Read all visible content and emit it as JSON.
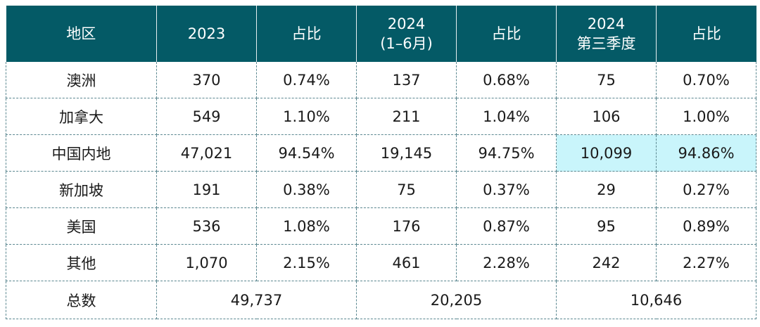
{
  "table": {
    "headers": {
      "region": "地区",
      "y2023": "2023",
      "share1": "占比",
      "h1_line1": "2024",
      "h1_line2": "(1–6月)",
      "share2": "占比",
      "q3_line1": "2024",
      "q3_line2": "第三季度",
      "share3": "占比"
    },
    "rows": [
      {
        "region": "澳洲",
        "v2023": "370",
        "p2023": "0.74%",
        "v2024h1": "137",
        "p2024h1": "0.68%",
        "v2024q3": "75",
        "p2024q3": "0.70%"
      },
      {
        "region": "加拿大",
        "v2023": "549",
        "p2023": "1.10%",
        "v2024h1": "211",
        "p2024h1": "1.04%",
        "v2024q3": "106",
        "p2024q3": "1.00%"
      },
      {
        "region": "中国内地",
        "v2023": "47,021",
        "p2023": "94.54%",
        "v2024h1": "19,145",
        "p2024h1": "94.75%",
        "v2024q3": "10,099",
        "p2024q3": "94.86%"
      },
      {
        "region": "新加坡",
        "v2023": "191",
        "p2023": "0.38%",
        "v2024h1": "75",
        "p2024h1": "0.37%",
        "v2024q3": "29",
        "p2024q3": "0.27%"
      },
      {
        "region": "美国",
        "v2023": "536",
        "p2023": "1.08%",
        "v2024h1": "176",
        "p2024h1": "0.87%",
        "v2024q3": "95",
        "p2024q3": "0.89%"
      },
      {
        "region": "其他",
        "v2023": "1,070",
        "p2023": "2.15%",
        "v2024h1": "461",
        "p2024h1": "2.28%",
        "v2024q3": "242",
        "p2024q3": "2.27%"
      }
    ],
    "total": {
      "label": "总数",
      "t2023": "49,737",
      "t2024h1": "20,205",
      "t2024q3": "10,646"
    },
    "colors": {
      "header_bg": "#045a66",
      "header_text": "#ffffff",
      "highlight_bg": "#c9f5fb",
      "grid_line": "#5b8790"
    },
    "highlighted_cells": [
      "中国内地 2024第三季度",
      "中国内地 2024第三季度 占比"
    ]
  }
}
